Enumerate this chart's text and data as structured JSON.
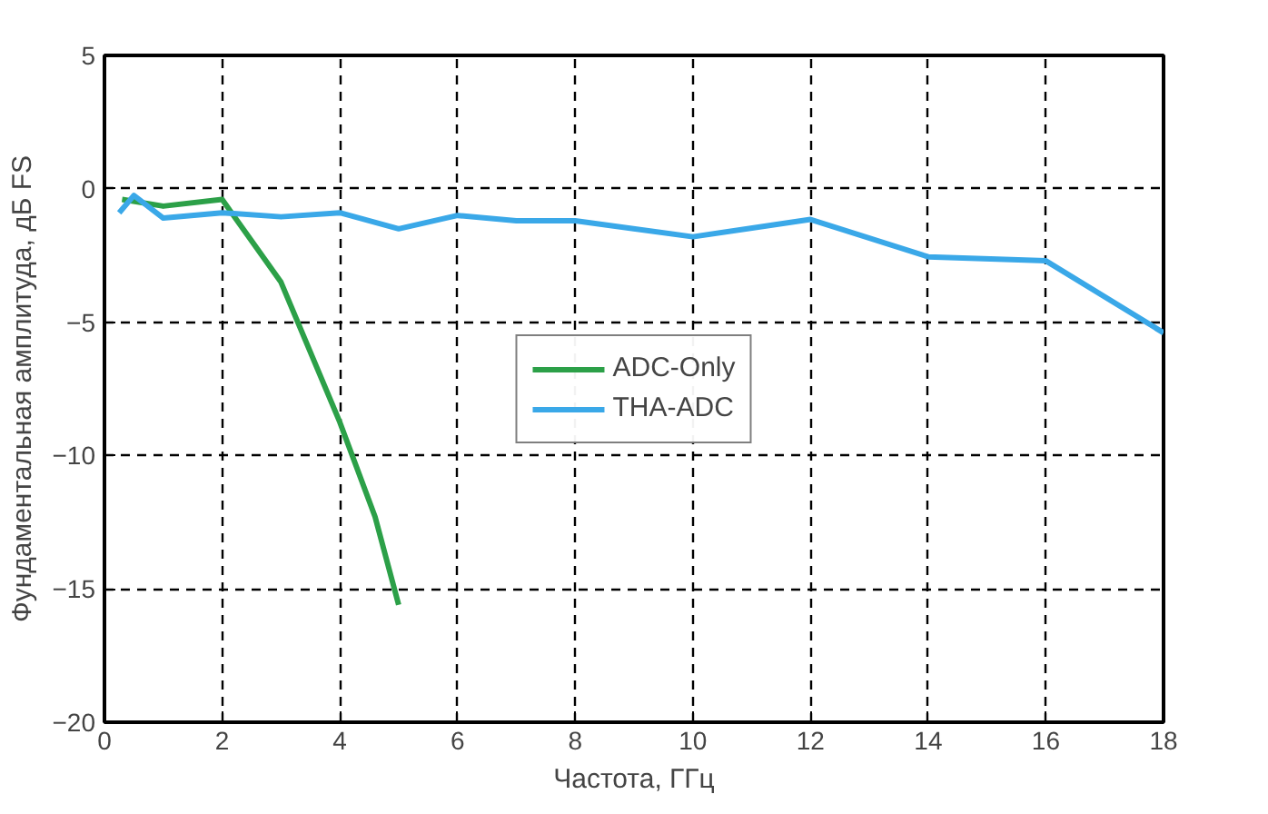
{
  "chart_data": {
    "type": "line",
    "xlabel": "Частота, ГГц",
    "ylabel": "Фундаментальная амплитуда, дБ FS",
    "xlim": [
      0,
      18
    ],
    "ylim": [
      -20,
      5
    ],
    "xticks": [
      0,
      2,
      4,
      6,
      8,
      10,
      12,
      14,
      16,
      18
    ],
    "yticks": [
      -20,
      -15,
      -10,
      -5,
      0,
      5
    ],
    "grid": true,
    "legend": "center",
    "line_style": "solid",
    "marker": "none",
    "series": [
      {
        "name": "ADC-Only",
        "color": "#2ca048",
        "x": [
          0.3,
          1,
          2,
          3,
          4,
          4.6,
          5
        ],
        "values": [
          -0.4,
          -0.65,
          -0.4,
          -3.5,
          -8.75,
          -12.3,
          -15.6
        ]
      },
      {
        "name": "THA-ADC",
        "color": "#3aa8e8",
        "x": [
          0.25,
          0.5,
          1,
          2,
          3,
          4,
          5,
          6,
          7,
          8,
          10,
          12,
          14,
          16,
          18
        ],
        "values": [
          -0.9,
          -0.25,
          -1.1,
          -0.9,
          -1.05,
          -0.9,
          -1.5,
          -1.0,
          -1.2,
          -1.2,
          -1.8,
          -1.15,
          -2.55,
          -2.7,
          -5.4
        ]
      }
    ]
  }
}
